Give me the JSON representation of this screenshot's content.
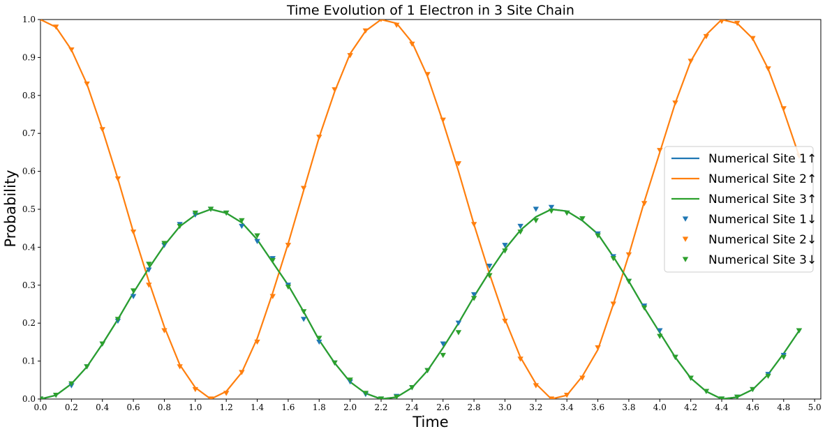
{
  "chart_data": {
    "type": "line",
    "title": "Time Evolution of 1 Electron in 3 Site Chain",
    "xlabel": "Time",
    "ylabel": "Probability",
    "xlim": [
      0.0,
      5.04
    ],
    "ylim": [
      0.0,
      1.0
    ],
    "xticks": [
      "0.0",
      "0.2",
      "0.4",
      "0.6",
      "0.8",
      "1.0",
      "1.2",
      "1.4",
      "1.6",
      "1.8",
      "2.0",
      "2.2",
      "2.4",
      "2.6",
      "2.8",
      "3.0",
      "3.2",
      "3.4",
      "3.6",
      "3.8",
      "4.0",
      "4.2",
      "4.4",
      "4.6",
      "4.8",
      "5.0"
    ],
    "yticks": [
      "0.0",
      "0.1",
      "0.2",
      "0.3",
      "0.4",
      "0.5",
      "0.6",
      "0.7",
      "0.8",
      "0.9",
      "1.0"
    ],
    "grid": false,
    "legend_position": "center-right",
    "x": [
      0.0,
      0.1,
      0.2,
      0.3,
      0.4,
      0.5,
      0.6,
      0.7,
      0.8,
      0.9,
      1.0,
      1.1,
      1.2,
      1.3,
      1.4,
      1.5,
      1.6,
      1.7,
      1.8,
      1.9,
      2.0,
      2.1,
      2.2,
      2.3,
      2.4,
      2.5,
      2.6,
      2.7,
      2.8,
      2.9,
      3.0,
      3.1,
      3.2,
      3.3,
      3.4,
      3.5,
      3.6,
      3.7,
      3.8,
      3.9,
      4.0,
      4.1,
      4.2,
      4.3,
      4.4,
      4.5,
      4.6,
      4.7,
      4.8,
      4.9
    ],
    "series": [
      {
        "name": "Numerical Site 1↑",
        "kind": "line",
        "color": "#1f77b4",
        "values": [
          0.0,
          0.01,
          0.04,
          0.085,
          0.145,
          0.21,
          0.28,
          0.345,
          0.405,
          0.455,
          0.485,
          0.5,
          0.49,
          0.465,
          0.42,
          0.36,
          0.3,
          0.23,
          0.155,
          0.095,
          0.045,
          0.015,
          0.0,
          0.005,
          0.03,
          0.075,
          0.135,
          0.2,
          0.27,
          0.335,
          0.395,
          0.445,
          0.48,
          0.5,
          0.495,
          0.47,
          0.435,
          0.375,
          0.31,
          0.24,
          0.175,
          0.11,
          0.055,
          0.02,
          0.0,
          0.005,
          0.025,
          0.065,
          0.12,
          0.18
        ]
      },
      {
        "name": "Numerical Site 2↑",
        "kind": "line",
        "color": "#ff7f0e",
        "values": [
          1.0,
          0.98,
          0.92,
          0.83,
          0.71,
          0.58,
          0.44,
          0.31,
          0.19,
          0.09,
          0.03,
          0.0,
          0.02,
          0.07,
          0.16,
          0.28,
          0.41,
          0.55,
          0.69,
          0.81,
          0.91,
          0.97,
          1.0,
          0.99,
          0.94,
          0.85,
          0.73,
          0.6,
          0.46,
          0.33,
          0.21,
          0.11,
          0.04,
          0.0,
          0.01,
          0.06,
          0.13,
          0.25,
          0.38,
          0.52,
          0.65,
          0.78,
          0.89,
          0.96,
          1.0,
          0.99,
          0.95,
          0.87,
          0.76,
          0.64
        ]
      },
      {
        "name": "Numerical Site 3↑",
        "kind": "line",
        "color": "#2ca02c",
        "values": [
          0.0,
          0.01,
          0.04,
          0.085,
          0.145,
          0.21,
          0.28,
          0.345,
          0.405,
          0.455,
          0.485,
          0.5,
          0.49,
          0.465,
          0.42,
          0.36,
          0.3,
          0.23,
          0.155,
          0.095,
          0.045,
          0.015,
          0.0,
          0.005,
          0.03,
          0.075,
          0.135,
          0.2,
          0.27,
          0.335,
          0.395,
          0.445,
          0.48,
          0.5,
          0.495,
          0.47,
          0.435,
          0.375,
          0.31,
          0.24,
          0.175,
          0.11,
          0.055,
          0.02,
          0.0,
          0.005,
          0.025,
          0.065,
          0.12,
          0.18
        ]
      },
      {
        "name": "Numerical Site 1↓",
        "kind": "scatter",
        "color": "#1f77b4",
        "values": [
          0.0,
          0.01,
          0.035,
          0.085,
          0.145,
          0.205,
          0.27,
          0.34,
          0.405,
          0.46,
          0.485,
          0.5,
          0.49,
          0.455,
          0.415,
          0.37,
          0.3,
          0.21,
          0.15,
          0.095,
          0.045,
          0.012,
          0.0,
          0.007,
          0.03,
          0.075,
          0.145,
          0.2,
          0.275,
          0.35,
          0.405,
          0.455,
          0.5,
          0.505,
          0.49,
          0.475,
          0.435,
          0.375,
          0.31,
          0.245,
          0.18,
          0.11,
          0.055,
          0.02,
          0.0,
          0.005,
          0.025,
          0.065,
          0.115,
          0.18
        ]
      },
      {
        "name": "Numerical Site 2↓",
        "kind": "scatter",
        "color": "#ff7f0e",
        "values": [
          1.0,
          0.98,
          0.92,
          0.83,
          0.71,
          0.58,
          0.44,
          0.3,
          0.18,
          0.085,
          0.025,
          0.0,
          0.015,
          0.07,
          0.15,
          0.27,
          0.405,
          0.555,
          0.69,
          0.815,
          0.905,
          0.97,
          1.0,
          0.985,
          0.935,
          0.855,
          0.735,
          0.62,
          0.46,
          0.325,
          0.205,
          0.105,
          0.035,
          0.0,
          0.01,
          0.055,
          0.135,
          0.25,
          0.38,
          0.515,
          0.655,
          0.78,
          0.89,
          0.955,
          0.995,
          0.99,
          0.95,
          0.87,
          0.765,
          0.64
        ]
      },
      {
        "name": "Numerical Site 3↓",
        "kind": "scatter",
        "color": "#2ca02c",
        "values": [
          0.0,
          0.01,
          0.04,
          0.085,
          0.145,
          0.21,
          0.285,
          0.355,
          0.41,
          0.455,
          0.49,
          0.5,
          0.49,
          0.47,
          0.43,
          0.365,
          0.295,
          0.23,
          0.16,
          0.095,
          0.05,
          0.015,
          0.0,
          0.005,
          0.03,
          0.075,
          0.115,
          0.175,
          0.265,
          0.325,
          0.39,
          0.44,
          0.47,
          0.495,
          0.49,
          0.475,
          0.43,
          0.37,
          0.31,
          0.24,
          0.165,
          0.11,
          0.055,
          0.02,
          0.0,
          0.005,
          0.025,
          0.06,
          0.11,
          0.18
        ]
      }
    ]
  }
}
